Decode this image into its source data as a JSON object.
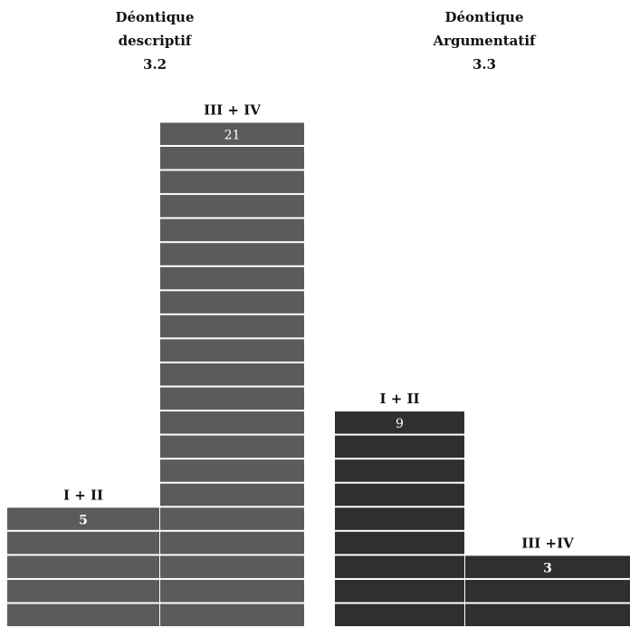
{
  "chart_data": [
    {
      "type": "bar",
      "title_lines": [
        "Déontique",
        "descriptif",
        "3.2"
      ],
      "categories": [
        "I + II",
        "III + IV"
      ],
      "values": [
        5,
        21
      ],
      "value_labels": [
        "5",
        "21"
      ],
      "color": "#5b5a5d",
      "unit_grid": true
    },
    {
      "type": "bar",
      "title_lines": [
        "Déontique",
        "Argumentatif",
        "3.3"
      ],
      "categories": [
        "I + II",
        "III +IV"
      ],
      "values": [
        9,
        3
      ],
      "value_labels": [
        "9",
        "3"
      ],
      "color": "#2f2e30",
      "unit_grid": true
    }
  ]
}
